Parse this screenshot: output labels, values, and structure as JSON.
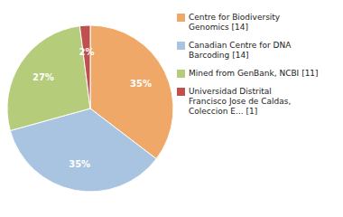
{
  "chart_data": {
    "type": "pie",
    "categories": [
      "Centre for Biodiversity\nGenomics [14]",
      "Canadian Centre for DNA\nBarcoding [14]",
      "Mined from GenBank, NCBI [11]",
      "Universidad Distrital\nFrancisco Jose de Caldas,\nColeccion E... [1]"
    ],
    "values": [
      35,
      35,
      27,
      2
    ],
    "value_labels": [
      "35%",
      "35%",
      "27%",
      "2%"
    ],
    "colors": [
      "#f0a868",
      "#a8c4e0",
      "#b5cc7a",
      "#c0504d"
    ],
    "data_labels": true,
    "legend": "right"
  }
}
